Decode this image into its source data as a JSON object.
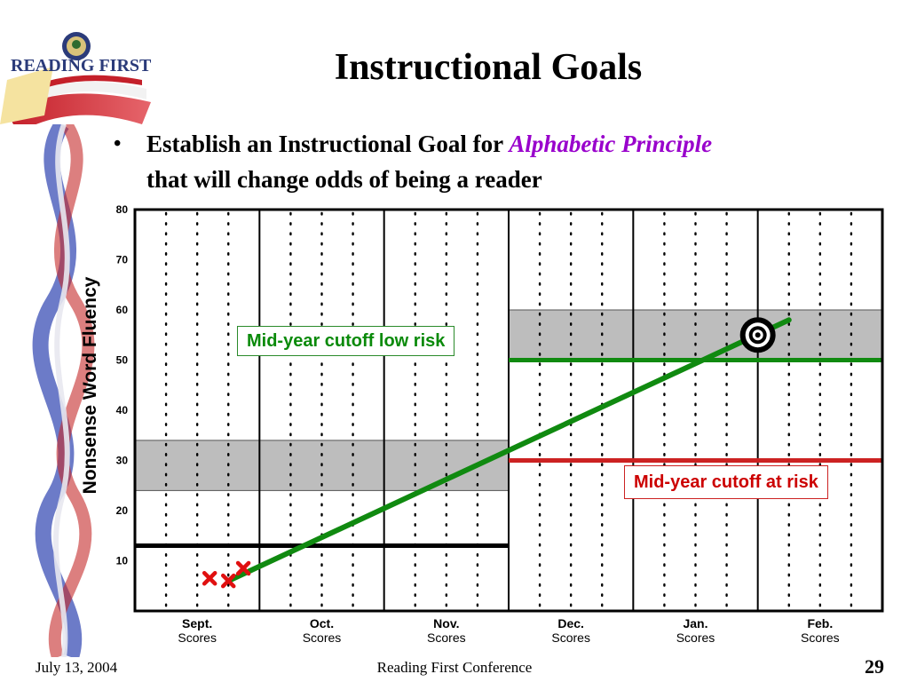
{
  "slide": {
    "title": "Instructional Goals",
    "bullet_prefix": "Establish an Instructional Goal for ",
    "bullet_emphasis": "Alphabetic Principle",
    "bullet_suffix": "that will change odds of being a reader"
  },
  "logo": {
    "text": "READING FIRST",
    "icon": "reading-first-flag-logo"
  },
  "footer": {
    "date": "July 13, 2004",
    "center": "Reading First Conference",
    "page": "29"
  },
  "chart_data": {
    "type": "line",
    "ylabel": "Nonsense Word Fluency",
    "xlabel": "",
    "ylim": [
      0,
      80
    ],
    "y_ticks": [
      10,
      20,
      30,
      40,
      50,
      60,
      70,
      80
    ],
    "months": [
      {
        "name": "Sept.",
        "sub": "Scores"
      },
      {
        "name": "Oct.",
        "sub": "Scores"
      },
      {
        "name": "Nov.",
        "sub": "Scores"
      },
      {
        "name": "Dec.",
        "sub": "Scores"
      },
      {
        "name": "Jan.",
        "sub": "Scores"
      },
      {
        "name": "Feb.",
        "sub": "Scores"
      }
    ],
    "xlim": [
      0,
      6
    ],
    "grid": "dotted",
    "shaded_bands": [
      {
        "x": [
          0,
          3
        ],
        "y": [
          24,
          34
        ]
      },
      {
        "x": [
          3,
          6
        ],
        "y": [
          50,
          60
        ]
      }
    ],
    "reference_lines": [
      {
        "x": [
          0,
          3
        ],
        "y": 13,
        "color": "#000000"
      },
      {
        "x": [
          3,
          6
        ],
        "y": 50,
        "color": "#108a10"
      },
      {
        "x": [
          3,
          6
        ],
        "y": 30,
        "color": "#cc2222"
      }
    ],
    "scores": [
      {
        "x": 0.6,
        "y": 6.5
      },
      {
        "x": 0.75,
        "y": 6.0
      },
      {
        "x": 0.87,
        "y": 8.5
      }
    ],
    "aimline": {
      "from": [
        0.75,
        6
      ],
      "to": [
        5.25,
        58
      ],
      "color": "#108a10"
    },
    "goal": {
      "x": 5.0,
      "y": 55
    },
    "callouts": {
      "low_risk": "Mid-year cutoff low risk",
      "at_risk": "Mid-year cutoff at risk"
    }
  }
}
